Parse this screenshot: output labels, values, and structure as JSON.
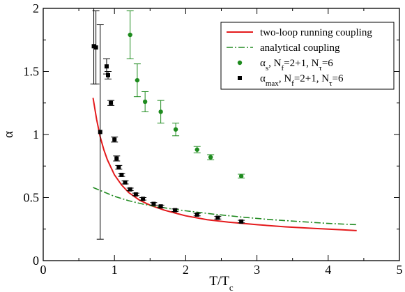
{
  "chart_data": {
    "type": "scatter",
    "xlabel": "T/T",
    "xlabel_sub": "c",
    "ylabel": "α",
    "xlim": [
      0,
      5
    ],
    "ylim": [
      0,
      2
    ],
    "x_ticks": [
      0,
      1,
      2,
      3,
      4,
      5
    ],
    "y_ticks": [
      0,
      0.5,
      1,
      1.5,
      2
    ],
    "x_tick_labels": [
      "0",
      "1",
      "2",
      "3",
      "4",
      "5"
    ],
    "y_tick_labels": [
      "0",
      "0.5",
      "1",
      "1.5",
      "2"
    ],
    "grid": false,
    "legend_position": "top-right",
    "series": [
      {
        "key": "two_loop",
        "name": "two-loop running coupling",
        "kind": "line",
        "style": "solid",
        "color": "#e41a1c",
        "x": [
          0.7,
          0.75,
          0.8,
          0.85,
          0.9,
          1.0,
          1.1,
          1.2,
          1.35,
          1.5,
          1.7,
          2.0,
          2.3,
          2.6,
          3.0,
          3.4,
          3.8,
          4.2,
          4.4
        ],
        "y": [
          1.29,
          1.12,
          0.98,
          0.88,
          0.8,
          0.68,
          0.6,
          0.54,
          0.48,
          0.44,
          0.4,
          0.355,
          0.325,
          0.305,
          0.285,
          0.268,
          0.255,
          0.244,
          0.238
        ]
      },
      {
        "key": "analytical",
        "name": "analytical coupling",
        "kind": "line",
        "style": "dash-dot",
        "color": "#228b22",
        "x": [
          0.7,
          0.85,
          1.0,
          1.2,
          1.4,
          1.6,
          1.8,
          2.0,
          2.4,
          2.8,
          3.2,
          3.6,
          4.0,
          4.4
        ],
        "y": [
          0.58,
          0.545,
          0.51,
          0.475,
          0.448,
          0.428,
          0.41,
          0.395,
          0.368,
          0.345,
          0.325,
          0.31,
          0.295,
          0.285
        ]
      },
      {
        "key": "alpha_s",
        "name": "α",
        "name_sub": "s",
        "name_suffix": ", N",
        "name_suffix_sub": "f",
        "name_tail": "=2+1, N",
        "name_tail_sub": "τ",
        "name_end": "=6",
        "kind": "points",
        "marker": "circle",
        "color": "#1e8b1e",
        "x": [
          1.22,
          1.32,
          1.43,
          1.65,
          1.86,
          2.16,
          2.35,
          2.78
        ],
        "y": [
          1.79,
          1.43,
          1.26,
          1.18,
          1.04,
          0.88,
          0.82,
          0.67
        ],
        "err": [
          0.19,
          0.13,
          0.08,
          0.09,
          0.05,
          0.025,
          0.02,
          0.015
        ]
      },
      {
        "key": "alpha_max",
        "name": "α",
        "name_sub": "max",
        "name_suffix": ", N",
        "name_suffix_sub": "f",
        "name_tail": "=2+1, N",
        "name_tail_sub": "τ",
        "name_end": "=6",
        "kind": "points",
        "marker": "square",
        "color": "#000000",
        "x": [
          0.71,
          0.74,
          0.8,
          0.89,
          0.91,
          0.95,
          1.0,
          1.03,
          1.06,
          1.1,
          1.15,
          1.22,
          1.3,
          1.4,
          1.55,
          1.65,
          1.85,
          2.16,
          2.45,
          2.78
        ],
        "y": [
          1.7,
          1.69,
          1.02,
          1.54,
          1.47,
          1.25,
          0.96,
          0.81,
          0.74,
          0.68,
          0.62,
          0.565,
          0.525,
          0.49,
          0.45,
          0.43,
          0.4,
          0.365,
          0.34,
          0.31
        ],
        "err": [
          0.3,
          0.29,
          0.85,
          0.06,
          0.03,
          0.02,
          0.02,
          0.02,
          0.015,
          0.012,
          0.012,
          0.01,
          0.01,
          0.01,
          0.01,
          0.01,
          0.01,
          0.01,
          0.01,
          0.01
        ]
      }
    ]
  }
}
